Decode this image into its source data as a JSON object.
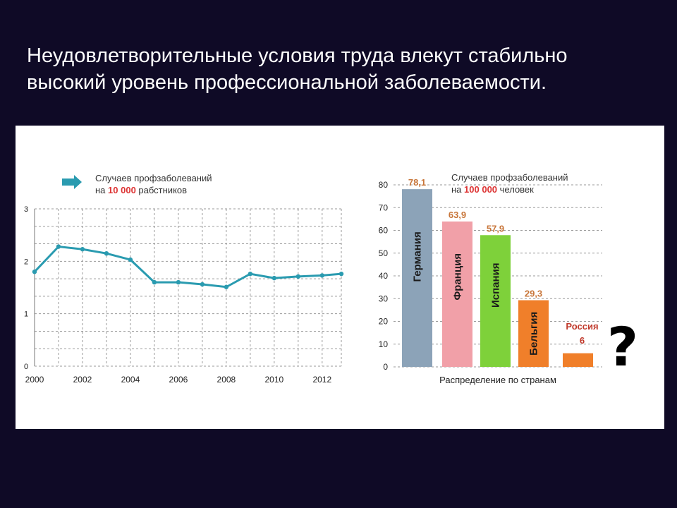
{
  "slide": {
    "title_line1": "Неудовлетворительные условия труда влекут стабильно",
    "title_line2": "высокий уровень профессиональной заболеваемости."
  },
  "colors": {
    "background": "#0f0a26",
    "line": "#2a9bb0",
    "arrow": "#2a9bb0",
    "highlight": "#d33333",
    "russia_label": "#c0392b"
  },
  "chart_data": [
    {
      "type": "line",
      "legend": {
        "prefix": "Случаев профзаболеваний",
        "line2_a": "на ",
        "line2_num": "10 000",
        "line2_b": " рабстников",
        "marker": "arrow-right-icon"
      },
      "x_tick_labels": [
        "2000",
        "2002",
        "2004",
        "2006",
        "2008",
        "2010",
        "2012"
      ],
      "y_tick_labels": [
        "0",
        "1",
        "2",
        "3"
      ],
      "ylim": [
        0,
        3
      ],
      "xlim": [
        2000,
        2012.8
      ],
      "grid": true,
      "series": [
        {
          "x": [
            2000,
            2001,
            2002,
            2003,
            2004,
            2005,
            2006,
            2007,
            2008,
            2009,
            2010,
            2011,
            2012,
            2012.8
          ],
          "values": [
            1.8,
            2.28,
            2.23,
            2.15,
            2.03,
            1.6,
            1.6,
            1.56,
            1.51,
            1.76,
            1.68,
            1.71,
            1.73,
            1.76
          ]
        }
      ]
    },
    {
      "type": "bar",
      "legend": {
        "prefix": "Случаев профзаболеваний",
        "line2_a": "на ",
        "line2_num": "100 000",
        "line2_b": " человек"
      },
      "xlabel": "Распределение по странам",
      "y_tick_labels": [
        "0",
        "10",
        "20",
        "30",
        "40",
        "50",
        "60",
        "70",
        "80"
      ],
      "ylim": [
        0,
        80
      ],
      "grid": true,
      "categories": [
        "Германия",
        "Франция",
        "Испания",
        "Бельгия",
        "Россия"
      ],
      "values": [
        78.1,
        63.9,
        57.9,
        29.3,
        6
      ],
      "value_labels": [
        "78,1",
        "63,9",
        "57,9",
        "29,3",
        "6"
      ],
      "bar_colors": [
        "#8ca3b8",
        "#f1a0a8",
        "#7ed13a",
        "#f07f2a",
        "#f07f2a"
      ],
      "value_label_colors": [
        "#c8763a",
        "#c8763a",
        "#c8763a",
        "#c8763a",
        "#c0392b"
      ],
      "annotation": "?"
    }
  ]
}
